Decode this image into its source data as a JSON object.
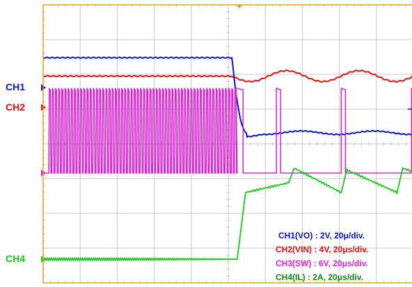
{
  "chart_data": {
    "type": "line",
    "title": "",
    "grid": true,
    "x_divisions": 10,
    "y_divisions": 8,
    "trigger_division": 5.3,
    "colors": {
      "background": "#ffffff",
      "grid": "#c8c8c8",
      "border": "#e8a020",
      "trigger": "#f09020",
      "CH1": "#0a14c8",
      "CH2": "#e01010",
      "CH3": "#e020d8",
      "CH4": "#18c818",
      "legend_ch4": "#128812"
    },
    "channel_labels": [
      {
        "id": "CH1",
        "text": "CH1",
        "level_div": 2.38
      },
      {
        "id": "CH2",
        "text": "CH2",
        "level_div": 2.95
      },
      {
        "id": "CH3",
        "text": "",
        "level_div": 4.84
      },
      {
        "id": "CH4",
        "text": "CH4",
        "level_div": 7.32
      }
    ],
    "legend": [
      {
        "id": "CH1",
        "text": "CH1(VO) : 2V, 20μ/div."
      },
      {
        "id": "CH2",
        "text": "CH2(VIN) : 4V, 20μs/div."
      },
      {
        "id": "CH3",
        "text": "CH3(SW) : 6V, 20μs/div."
      },
      {
        "id": "CH4",
        "text": "CH4(IL) : 2A, 20μs/div."
      }
    ],
    "series": [
      {
        "name": "CH1(VO)",
        "high_level_div": -1.98,
        "low_level_div": 1.18,
        "ripple_div": 0.06,
        "transition_div": [
          5.1,
          5.5
        ]
      },
      {
        "name": "CH2(VIN)",
        "level_div": -1.45,
        "ripple_after_div": 0.12
      },
      {
        "name": "CH3(SW)",
        "high_level_div": 2.4,
        "low_level_div": 4.84,
        "burst_end_div": 5.24,
        "burst_period_div": 0.085,
        "pulse_times_div": [
          5.21,
          6.3,
          8.05,
          9.95,
          11.6
        ]
      },
      {
        "name": "CH4(IL)",
        "start_level_div": 7.32,
        "step_div": 5.24,
        "ramp_starts_div": [
          5.24,
          6.63,
          8.05,
          9.56,
          11.6
        ],
        "ramp_peaks_level_div": [
          5.4,
          4.7,
          4.75,
          4.7,
          4.72
        ],
        "ramp_ends_level_div": [
          5.12,
          5.4,
          5.4,
          5.4,
          5.3
        ]
      }
    ]
  }
}
